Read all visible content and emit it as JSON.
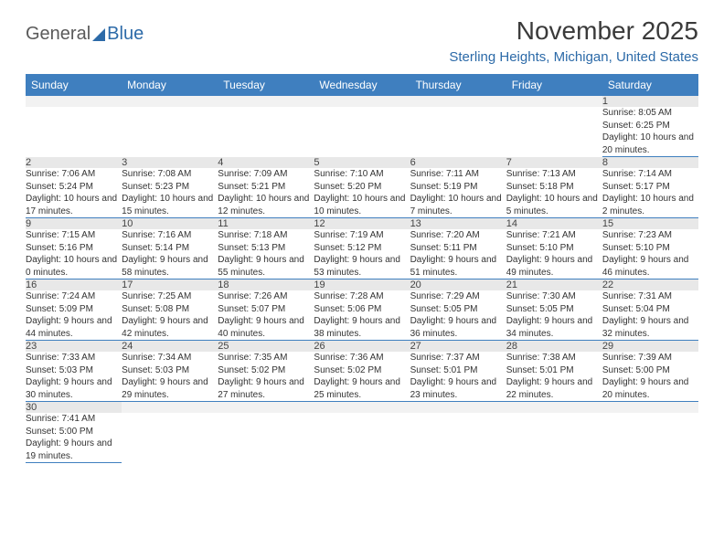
{
  "logo": {
    "text1": "General",
    "text2": "Blue"
  },
  "title": "November 2025",
  "location": "Sterling Heights, Michigan, United States",
  "colors": {
    "header_bg": "#3f7fbf",
    "header_text": "#ffffff",
    "daynum_bg": "#e8e8e8",
    "row_border": "#3f7fbf",
    "location_color": "#2c6aa8"
  },
  "day_headers": [
    "Sunday",
    "Monday",
    "Tuesday",
    "Wednesday",
    "Thursday",
    "Friday",
    "Saturday"
  ],
  "weeks": [
    [
      null,
      null,
      null,
      null,
      null,
      null,
      {
        "n": "1",
        "sr": "8:05 AM",
        "ss": "6:25 PM",
        "dl": "10 hours and 20 minutes."
      }
    ],
    [
      {
        "n": "2",
        "sr": "7:06 AM",
        "ss": "5:24 PM",
        "dl": "10 hours and 17 minutes."
      },
      {
        "n": "3",
        "sr": "7:08 AM",
        "ss": "5:23 PM",
        "dl": "10 hours and 15 minutes."
      },
      {
        "n": "4",
        "sr": "7:09 AM",
        "ss": "5:21 PM",
        "dl": "10 hours and 12 minutes."
      },
      {
        "n": "5",
        "sr": "7:10 AM",
        "ss": "5:20 PM",
        "dl": "10 hours and 10 minutes."
      },
      {
        "n": "6",
        "sr": "7:11 AM",
        "ss": "5:19 PM",
        "dl": "10 hours and 7 minutes."
      },
      {
        "n": "7",
        "sr": "7:13 AM",
        "ss": "5:18 PM",
        "dl": "10 hours and 5 minutes."
      },
      {
        "n": "8",
        "sr": "7:14 AM",
        "ss": "5:17 PM",
        "dl": "10 hours and 2 minutes."
      }
    ],
    [
      {
        "n": "9",
        "sr": "7:15 AM",
        "ss": "5:16 PM",
        "dl": "10 hours and 0 minutes."
      },
      {
        "n": "10",
        "sr": "7:16 AM",
        "ss": "5:14 PM",
        "dl": "9 hours and 58 minutes."
      },
      {
        "n": "11",
        "sr": "7:18 AM",
        "ss": "5:13 PM",
        "dl": "9 hours and 55 minutes."
      },
      {
        "n": "12",
        "sr": "7:19 AM",
        "ss": "5:12 PM",
        "dl": "9 hours and 53 minutes."
      },
      {
        "n": "13",
        "sr": "7:20 AM",
        "ss": "5:11 PM",
        "dl": "9 hours and 51 minutes."
      },
      {
        "n": "14",
        "sr": "7:21 AM",
        "ss": "5:10 PM",
        "dl": "9 hours and 49 minutes."
      },
      {
        "n": "15",
        "sr": "7:23 AM",
        "ss": "5:10 PM",
        "dl": "9 hours and 46 minutes."
      }
    ],
    [
      {
        "n": "16",
        "sr": "7:24 AM",
        "ss": "5:09 PM",
        "dl": "9 hours and 44 minutes."
      },
      {
        "n": "17",
        "sr": "7:25 AM",
        "ss": "5:08 PM",
        "dl": "9 hours and 42 minutes."
      },
      {
        "n": "18",
        "sr": "7:26 AM",
        "ss": "5:07 PM",
        "dl": "9 hours and 40 minutes."
      },
      {
        "n": "19",
        "sr": "7:28 AM",
        "ss": "5:06 PM",
        "dl": "9 hours and 38 minutes."
      },
      {
        "n": "20",
        "sr": "7:29 AM",
        "ss": "5:05 PM",
        "dl": "9 hours and 36 minutes."
      },
      {
        "n": "21",
        "sr": "7:30 AM",
        "ss": "5:05 PM",
        "dl": "9 hours and 34 minutes."
      },
      {
        "n": "22",
        "sr": "7:31 AM",
        "ss": "5:04 PM",
        "dl": "9 hours and 32 minutes."
      }
    ],
    [
      {
        "n": "23",
        "sr": "7:33 AM",
        "ss": "5:03 PM",
        "dl": "9 hours and 30 minutes."
      },
      {
        "n": "24",
        "sr": "7:34 AM",
        "ss": "5:03 PM",
        "dl": "9 hours and 29 minutes."
      },
      {
        "n": "25",
        "sr": "7:35 AM",
        "ss": "5:02 PM",
        "dl": "9 hours and 27 minutes."
      },
      {
        "n": "26",
        "sr": "7:36 AM",
        "ss": "5:02 PM",
        "dl": "9 hours and 25 minutes."
      },
      {
        "n": "27",
        "sr": "7:37 AM",
        "ss": "5:01 PM",
        "dl": "9 hours and 23 minutes."
      },
      {
        "n": "28",
        "sr": "7:38 AM",
        "ss": "5:01 PM",
        "dl": "9 hours and 22 minutes."
      },
      {
        "n": "29",
        "sr": "7:39 AM",
        "ss": "5:00 PM",
        "dl": "9 hours and 20 minutes."
      }
    ],
    [
      {
        "n": "30",
        "sr": "7:41 AM",
        "ss": "5:00 PM",
        "dl": "9 hours and 19 minutes."
      },
      null,
      null,
      null,
      null,
      null,
      null
    ]
  ],
  "labels": {
    "sunrise": "Sunrise: ",
    "sunset": "Sunset: ",
    "daylight": "Daylight: "
  }
}
